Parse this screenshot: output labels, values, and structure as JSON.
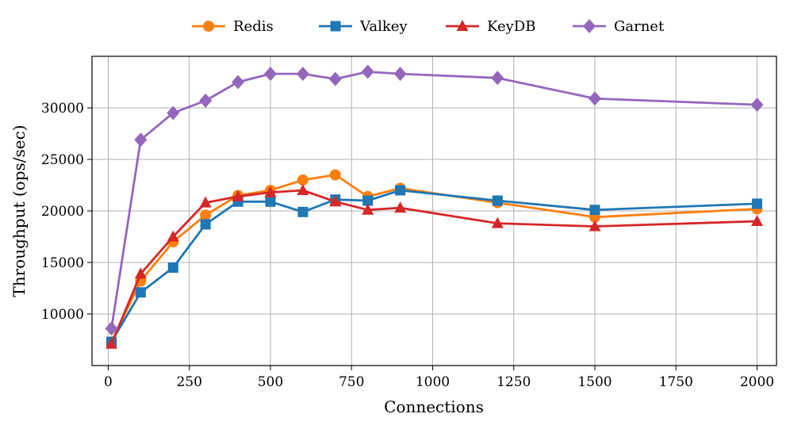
{
  "chart_data": {
    "type": "line",
    "title": "",
    "xlabel": "Connections",
    "ylabel": "Throughput (ops/sec)",
    "xlim": [
      -50,
      2060
    ],
    "ylim": [
      5000,
      35000
    ],
    "grid": true,
    "legend_position": "top-center",
    "x": [
      10,
      100,
      200,
      300,
      400,
      500,
      600,
      700,
      800,
      900,
      1200,
      1500,
      2000
    ],
    "x_ticks": [
      0,
      250,
      500,
      750,
      1000,
      1250,
      1500,
      1750,
      2000
    ],
    "x_tick_labels": [
      "0",
      "250",
      "500",
      "750",
      "1000",
      "1250",
      "1500",
      "1750",
      "2000"
    ],
    "y_ticks": [
      10000,
      15000,
      20000,
      25000,
      30000
    ],
    "y_tick_labels": [
      "10000",
      "15000",
      "20000",
      "25000",
      "30000"
    ],
    "series": [
      {
        "name": "Redis",
        "color": "#ff7f0e",
        "marker": "circle",
        "values": [
          7300,
          13200,
          17000,
          19600,
          21500,
          22000,
          23000,
          23500,
          21400,
          22200,
          20800,
          19400,
          20200
        ]
      },
      {
        "name": "Valkey",
        "color": "#1f77b4",
        "marker": "square",
        "values": [
          7300,
          12100,
          14500,
          18700,
          20900,
          20900,
          19900,
          21100,
          21000,
          22000,
          21000,
          20100,
          20700
        ]
      },
      {
        "name": "KeyDB",
        "color": "#d62728",
        "marker": "triangle",
        "values": [
          7100,
          13900,
          17500,
          20800,
          21400,
          21800,
          22000,
          20900,
          20100,
          20300,
          18800,
          18500,
          19000
        ]
      },
      {
        "name": "Garnet",
        "color": "#9467bd",
        "marker": "diamond",
        "values": [
          8600,
          26900,
          29500,
          30700,
          32500,
          33300,
          33300,
          32800,
          33500,
          33300,
          32900,
          30900,
          30300
        ]
      }
    ]
  }
}
